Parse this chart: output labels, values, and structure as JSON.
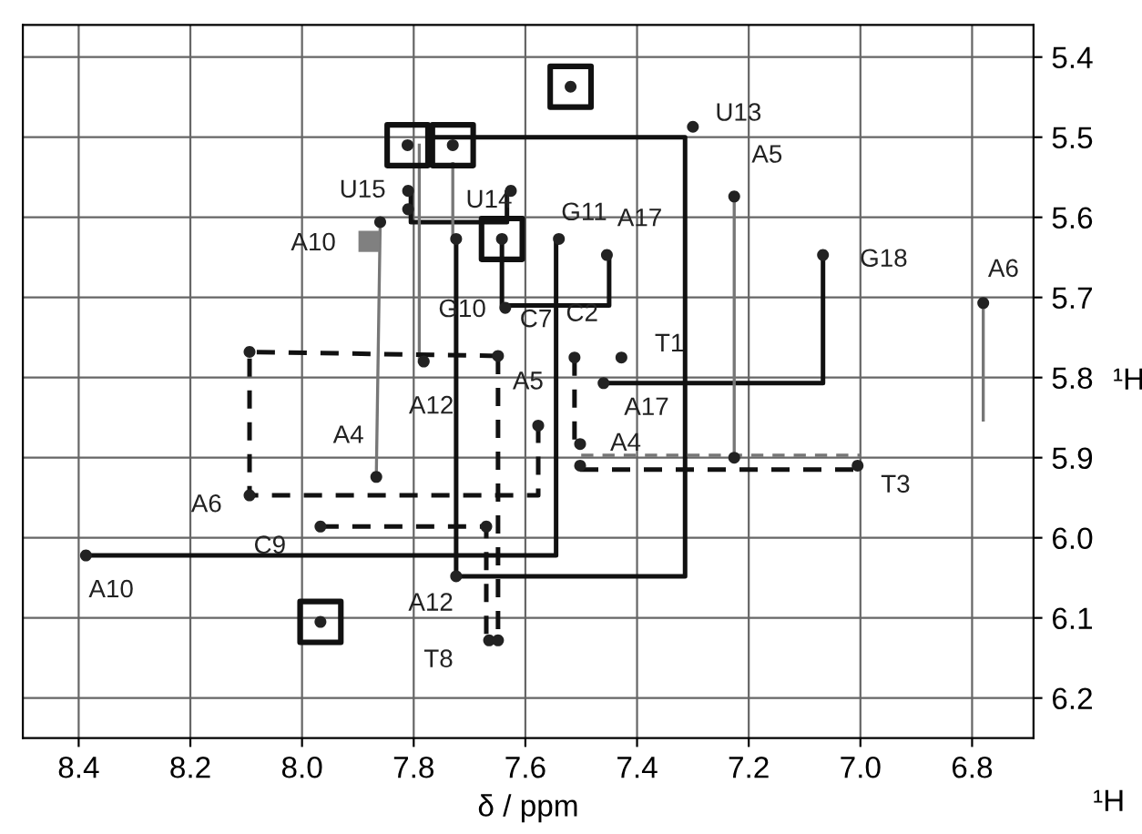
{
  "chart_data": {
    "type": "scatter",
    "xlabel": "δ / ppm",
    "ylabel": "¹H",
    "xlim": [
      8.5,
      6.69
    ],
    "ylim": [
      6.25,
      5.36
    ],
    "xticks": [
      8.4,
      8.2,
      {
        "value": 8,
        "label": "8.0"
      },
      7.8,
      7.6,
      7.4,
      7.2,
      {
        "value": 7,
        "label": "7.0"
      },
      6.8
    ],
    "yticks": [
      5.4,
      5.5,
      5.6,
      5.7,
      5.8,
      5.9,
      {
        "value": 6,
        "label": "6.0"
      },
      6.1,
      6.2
    ],
    "grid": true,
    "legend": false,
    "series": [
      {
        "marker": "circle",
        "color": "#222222",
        "x": [
          7.519,
          7.811,
          7.73,
          7.81,
          7.81,
          7.626,
          7.724,
          7.642,
          7.54,
          7.86,
          7.636,
          7.649,
          7.782,
          8.094,
          7.512,
          7.3,
          7.226,
          7.454,
          7.067,
          6.78,
          7.428,
          7.46,
          7.577,
          7.867,
          8.094,
          7.967,
          7.67,
          8.387,
          7.724,
          7.967,
          7.665,
          7.649,
          7.502,
          7.502,
          7.005,
          7.226
        ],
        "values": [
          5.437,
          5.51,
          5.51,
          5.567,
          5.59,
          5.567,
          5.627,
          5.627,
          5.627,
          5.606,
          5.713,
          5.773,
          5.78,
          5.768,
          5.775,
          5.487,
          5.574,
          5.647,
          5.647,
          5.707,
          5.775,
          5.807,
          5.86,
          5.924,
          5.947,
          5.986,
          5.986,
          6.022,
          6.048,
          6.105,
          6.128,
          6.128,
          5.883,
          5.91,
          5.91,
          5.9
        ]
      },
      {
        "marker": "square",
        "color": "#111111",
        "x": [
          7.811,
          7.73,
          7.519,
          7.642,
          7.967
        ],
        "values": [
          5.51,
          5.51,
          5.437,
          5.627,
          6.105
        ]
      },
      {
        "marker": "square",
        "color": "#808080",
        "x": [
          7.88
        ],
        "values": [
          5.63
        ]
      },
      {
        "type": "line",
        "line_style": "solid",
        "color": "#111111",
        "x": [
          8.387,
          7.545,
          7.545,
          null,
          7.724,
          7.724,
          7.314,
          7.314,
          7.772,
          null,
          7.642,
          7.642,
          7.45,
          7.45,
          null,
          7.46,
          7.067,
          7.067,
          null,
          7.805,
          7.805,
          7.633,
          7.633
        ],
        "values": [
          6.022,
          6.022,
          5.627,
          null,
          5.627,
          6.048,
          6.048,
          5.5,
          5.5,
          null,
          5.627,
          5.71,
          5.71,
          5.647,
          null,
          5.807,
          5.807,
          5.647,
          null,
          5.569,
          5.606,
          5.606,
          5.569
        ]
      },
      {
        "type": "line",
        "line_style": "solid",
        "color": "#777777",
        "x": [
          7.79,
          7.79,
          null,
          7.73,
          7.73,
          null,
          7.86,
          7.867,
          null,
          7.226,
          7.226,
          null,
          6.78,
          6.78
        ],
        "values": [
          5.51,
          5.78,
          null,
          5.533,
          5.627,
          null,
          5.606,
          5.924,
          null,
          5.574,
          5.9,
          null,
          5.707,
          5.853
        ]
      },
      {
        "type": "line",
        "line_style": "dashed",
        "color": "#111111",
        "x": [
          7.649,
          8.094,
          8.094,
          7.577,
          7.577,
          null,
          7.967,
          7.67,
          7.67,
          null,
          7.649,
          7.649,
          null,
          7.512,
          7.512,
          null,
          7.502,
          7.005
        ],
        "values": [
          5.773,
          5.768,
          5.947,
          5.947,
          5.86,
          null,
          5.986,
          5.986,
          6.128,
          null,
          5.773,
          6.128,
          null,
          5.775,
          5.883,
          null,
          5.915,
          5.915
        ]
      },
      {
        "type": "line",
        "line_style": "dashed",
        "color": "#777777",
        "x": [
          7.5,
          7.0
        ],
        "values": [
          5.897,
          5.897
        ]
      }
    ],
    "annotations": [
      {
        "text": "U13",
        "x": 7.3,
        "y": 5.487
      },
      {
        "text": "A5",
        "x": 7.226,
        "y": 5.574
      },
      {
        "text": "A17",
        "x": 7.454,
        "y": 5.647
      },
      {
        "text": "G18",
        "x": 7.067,
        "y": 5.647
      },
      {
        "text": "A6",
        "x": 6.78,
        "y": 5.707
      },
      {
        "text": "T1",
        "x": 7.428,
        "y": 5.775
      },
      {
        "text": "A17",
        "x": 7.46,
        "y": 5.807
      },
      {
        "text": "G11",
        "x": 7.54,
        "y": 5.627
      },
      {
        "text": "U15",
        "x": 7.81,
        "y": 5.567
      },
      {
        "text": "U14",
        "x": 7.724,
        "y": 5.627
      },
      {
        "text": "A10",
        "x": 7.88,
        "y": 5.63
      },
      {
        "text": "G10",
        "x": 7.636,
        "y": 5.713
      },
      {
        "text": "C7",
        "x": 7.649,
        "y": 5.773
      },
      {
        "text": "C2",
        "x": 7.512,
        "y": 5.775
      },
      {
        "text": "A12",
        "x": 7.782,
        "y": 5.78
      },
      {
        "text": "A5",
        "x": 7.577,
        "y": 5.86
      },
      {
        "text": "A4",
        "x": 7.867,
        "y": 5.924
      },
      {
        "text": "A6",
        "x": 8.094,
        "y": 5.947
      },
      {
        "text": "C9",
        "x": 7.967,
        "y": 5.986
      },
      {
        "text": "A10",
        "x": 8.387,
        "y": 6.022
      },
      {
        "text": "A12",
        "x": 7.724,
        "y": 6.048
      },
      {
        "text": "T8",
        "x": 7.665,
        "y": 6.128
      },
      {
        "text": "A4",
        "x": 7.502,
        "y": 5.883
      },
      {
        "text": "T3",
        "x": 7.005,
        "y": 5.91
      },
      "¹H"
    ]
  }
}
